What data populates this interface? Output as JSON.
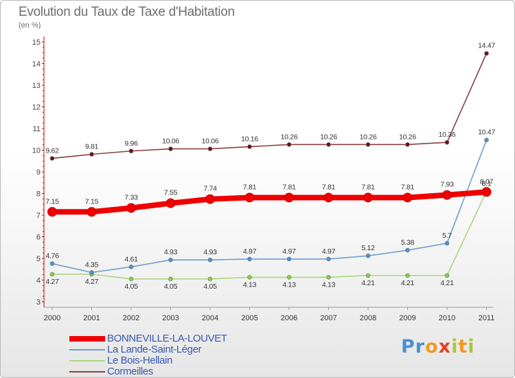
{
  "title": "Evolution du Taux de Taxe d'Habitation",
  "unit_label": "(en %)",
  "logo": {
    "text": "Proxiti"
  },
  "chart_data": {
    "type": "line",
    "x": [
      "2000",
      "2001",
      "2002",
      "2003",
      "2004",
      "2005",
      "2006",
      "2007",
      "2008",
      "2009",
      "2010",
      "2011"
    ],
    "ylim": [
      3,
      15
    ],
    "yticks": [
      3,
      4,
      5,
      6,
      7,
      8,
      9,
      10,
      11,
      12,
      13,
      14,
      15
    ],
    "ytick_labels": [
      "3",
      "4",
      "5",
      "6",
      "7",
      "8",
      "9",
      "10",
      "11",
      "12",
      "13",
      "14",
      "15"
    ],
    "grid": false,
    "legend_position": "bottom-left",
    "series": [
      {
        "name": "BONNEVILLE-LA-LOUVET",
        "color": "#ee0000",
        "marker_fill": "#ee0000",
        "width": "thick",
        "values": [
          7.15,
          7.15,
          7.33,
          7.55,
          7.74,
          7.81,
          7.81,
          7.81,
          7.81,
          7.81,
          7.93,
          8.07
        ],
        "labels": [
          "7.15",
          "7.15",
          "7.33",
          "7.55",
          "7.74",
          "7.81",
          "7.81",
          "7.81",
          "7.81",
          "7.81",
          "7.93",
          "8.07"
        ]
      },
      {
        "name": "La Lande-Saint-Léger",
        "color": "#6f9fd0",
        "marker_fill": "#4c8fd6",
        "width": "thin",
        "values": [
          4.76,
          4.35,
          4.61,
          4.93,
          4.93,
          4.97,
          4.97,
          4.97,
          5.12,
          5.38,
          5.7,
          10.47
        ],
        "labels": [
          "4.76",
          "4.35",
          "4.61",
          "4.93",
          "4.93",
          "4.97",
          "4.97",
          "4.97",
          "5.12",
          "5.38",
          "5.7",
          "10.47"
        ]
      },
      {
        "name": "Le Bois-Hellain",
        "color": "#a8d880",
        "marker_fill": "#88cc44",
        "width": "thin",
        "values": [
          4.27,
          4.27,
          4.05,
          4.05,
          4.05,
          4.13,
          4.13,
          4.13,
          4.21,
          4.21,
          4.21,
          8.1
        ],
        "labels": [
          "4.27",
          "4.27",
          "4.05",
          "4.05",
          "4.05",
          "4.13",
          "4.13",
          "4.13",
          "4.21",
          "4.21",
          "4.21",
          "8.1"
        ]
      },
      {
        "name": "Cormeilles",
        "color": "#8a4040",
        "marker_fill": "#6a1414",
        "width": "thin",
        "values": [
          9.62,
          9.81,
          9.96,
          10.06,
          10.06,
          10.16,
          10.26,
          10.26,
          10.26,
          10.26,
          10.36,
          14.47
        ],
        "labels": [
          "9.62",
          "9.81",
          "9.96",
          "10.06",
          "10.06",
          "10.16",
          "10.26",
          "10.26",
          "10.26",
          "10.26",
          "10.36",
          "14.47"
        ]
      }
    ]
  }
}
